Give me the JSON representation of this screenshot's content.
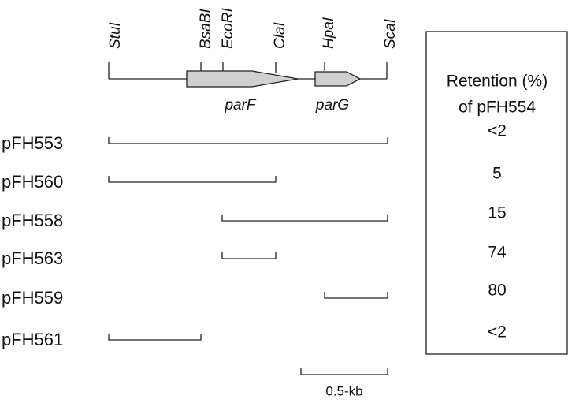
{
  "sites": [
    "StuI",
    "BsaBI",
    "EcoRI",
    "ClaI",
    "HpaI",
    "ScaI"
  ],
  "genes": [
    "parF",
    "parG"
  ],
  "retention_header": [
    "Retention (%)",
    "of pFH554"
  ],
  "constructs": [
    {
      "name": "pFH553",
      "retention": "<2"
    },
    {
      "name": "pFH560",
      "retention": "5"
    },
    {
      "name": "pFH558",
      "retention": "15"
    },
    {
      "name": "pFH563",
      "retention": "74"
    },
    {
      "name": "pFH559",
      "retention": "80"
    },
    {
      "name": "pFH561",
      "retention": "<2"
    }
  ],
  "scale_label": "0.5-kb"
}
